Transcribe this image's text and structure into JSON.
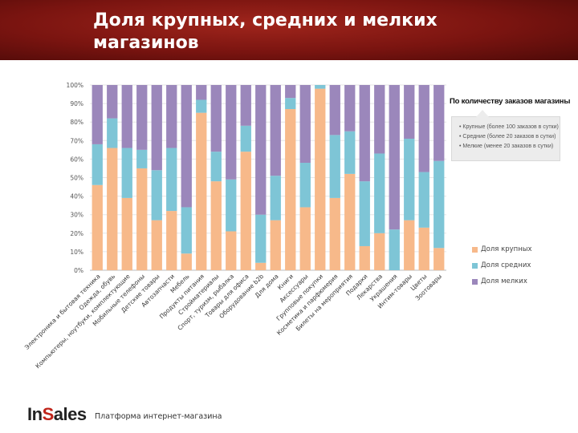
{
  "slide": {
    "title": "Доля крупных, средних и мелких магазинов"
  },
  "colors": {
    "header": "#7a1410",
    "large": "#f7b98a",
    "medium": "#7ec5d6",
    "small": "#9b87bb",
    "logo_accent": "#c0251b"
  },
  "callout": {
    "title": "По количеству заказов магазины",
    "lines": [
      "• Крупные (более 100 заказов в сутки)",
      "• Средние (более 20 заказов в сутки)",
      "• Мелкие (менее 20 заказов в сутки)"
    ]
  },
  "footer": {
    "logo_prefix": "In",
    "logo_accent": "S",
    "logo_suffix": "ales",
    "caption": "Платформа интернет-магазина"
  },
  "chart_data": {
    "type": "bar",
    "stacked": true,
    "percent": true,
    "categories": [
      "Электроника и бытовая техника",
      "Одежда, обувь",
      "Компьютеры, ноутбуки, комплектующие",
      "Мобильные телефоны",
      "Детские товары",
      "Автозапчасти",
      "Мебель",
      "Продукты питания",
      "Стройматериалы",
      "Спорт, туризм, рыбалка",
      "Товары для офиса",
      "Оборудование b2b",
      "Для дома",
      "Книги",
      "Аксессуары",
      "Групповые покупки",
      "Косметика и парфюмерия",
      "Билеты на мероприятия",
      "Подарки",
      "Лекарства",
      "Украшения",
      "Интим-товары",
      "Цветы",
      "Зоотовары"
    ],
    "series": [
      {
        "name": "Доля крупных",
        "values": [
          46,
          66,
          39,
          55,
          27,
          32,
          9,
          85,
          48,
          21,
          64,
          4,
          27,
          87,
          34,
          98,
          39,
          52,
          13,
          20,
          0,
          27,
          23,
          12
        ]
      },
      {
        "name": "Доля средних",
        "values": [
          22,
          16,
          27,
          10,
          27,
          34,
          25,
          7,
          16,
          28,
          14,
          26,
          24,
          6,
          24,
          2,
          34,
          23,
          35,
          43,
          22,
          44,
          30,
          47
        ]
      },
      {
        "name": "Доля мелких",
        "values": [
          32,
          18,
          34,
          35,
          46,
          34,
          66,
          8,
          36,
          51,
          22,
          70,
          49,
          7,
          42,
          0,
          27,
          25,
          52,
          37,
          78,
          29,
          47,
          41
        ]
      }
    ],
    "yticks": [
      "0%",
      "10%",
      "20%",
      "30%",
      "40%",
      "50%",
      "60%",
      "70%",
      "80%",
      "90%",
      "100%"
    ],
    "ylim": [
      0,
      100
    ],
    "legend": [
      "Доля крупных",
      "Доля средних",
      "Доля мелких"
    ],
    "legend_position": "right"
  }
}
